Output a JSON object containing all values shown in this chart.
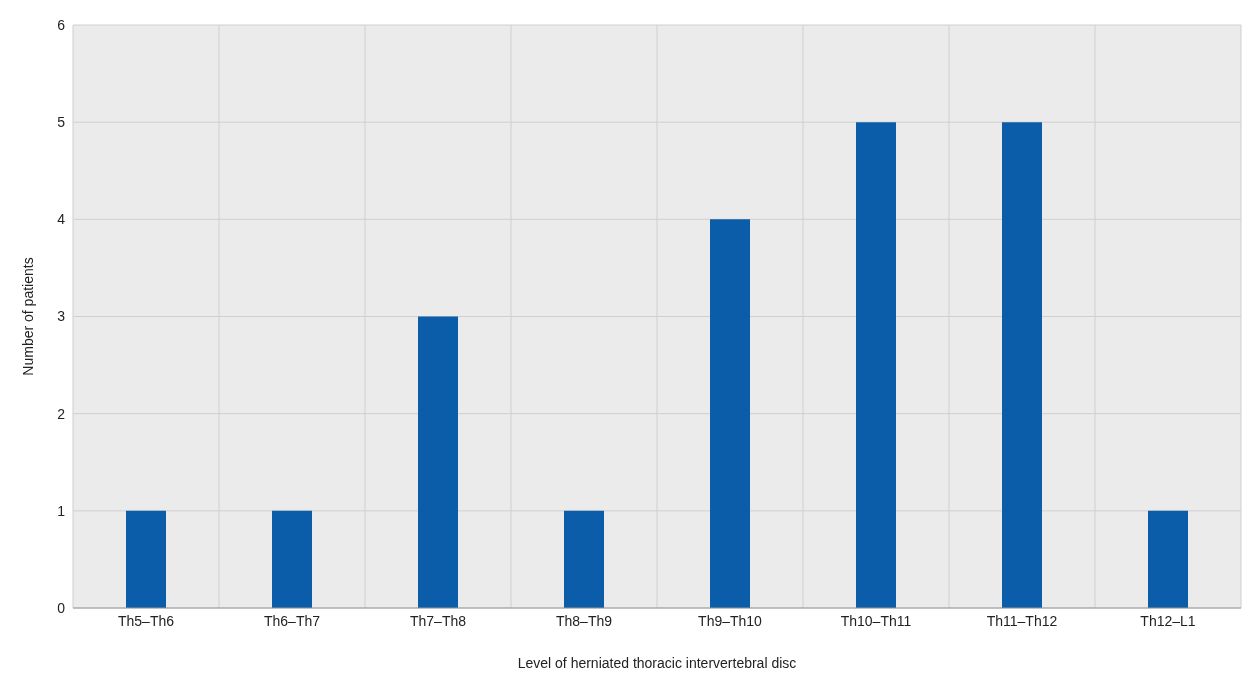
{
  "chart_data": {
    "type": "bar",
    "xlabel": "Level of herniated thoracic intervertebral disc",
    "ylabel": "Number of patients",
    "categories": [
      "Th5–Th6",
      "Th6–Th7",
      "Th7–Th8",
      "Th8–Th9",
      "Th9–Th10",
      "Th10–Th11",
      "Th11–Th12",
      "Th12–L1"
    ],
    "values": [
      1,
      1,
      3,
      1,
      4,
      5,
      5,
      1
    ],
    "color": "#0b5ca9",
    "ylim": [
      0,
      6
    ],
    "yticks": [
      0,
      1,
      2,
      3,
      4,
      5,
      6
    ],
    "grid": true
  }
}
